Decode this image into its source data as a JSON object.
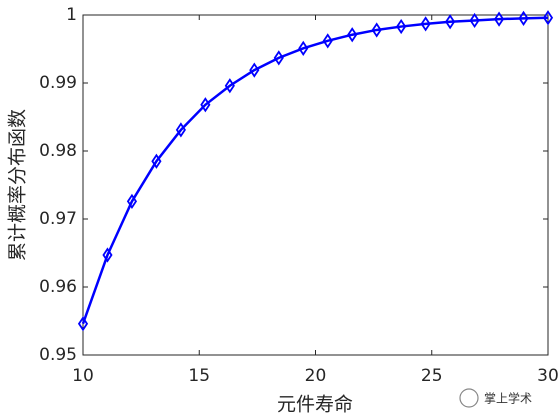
{
  "chart_data": {
    "type": "line",
    "xlabel": "元件寿命",
    "ylabel": "累计概率分布函数",
    "x": [
      10,
      11.0526,
      12.1053,
      13.1579,
      14.2105,
      15.2632,
      16.3158,
      17.3684,
      18.4211,
      19.4737,
      20.5263,
      21.5789,
      22.6316,
      23.6842,
      24.7368,
      25.7895,
      26.8421,
      27.8947,
      28.9474,
      30
    ],
    "series": [
      {
        "color": "#0000ff",
        "values": [
          0.9546,
          0.9647,
          0.9726,
          0.9785,
          0.9831,
          0.9868,
          0.9896,
          0.9919,
          0.9937,
          0.9951,
          0.9962,
          0.9971,
          0.9978,
          0.9983,
          0.9987,
          0.999,
          0.9992,
          0.9994,
          0.9995,
          0.9996
        ]
      }
    ],
    "xlim": [
      10,
      30
    ],
    "xticks": [
      10,
      15,
      20,
      25,
      30
    ],
    "ylim": [
      0.95,
      1
    ],
    "yticks": [
      0.95,
      0.96,
      0.97,
      0.98,
      0.99,
      1
    ],
    "marker": "diamond",
    "grid": false,
    "watermark": "掌上学术"
  }
}
